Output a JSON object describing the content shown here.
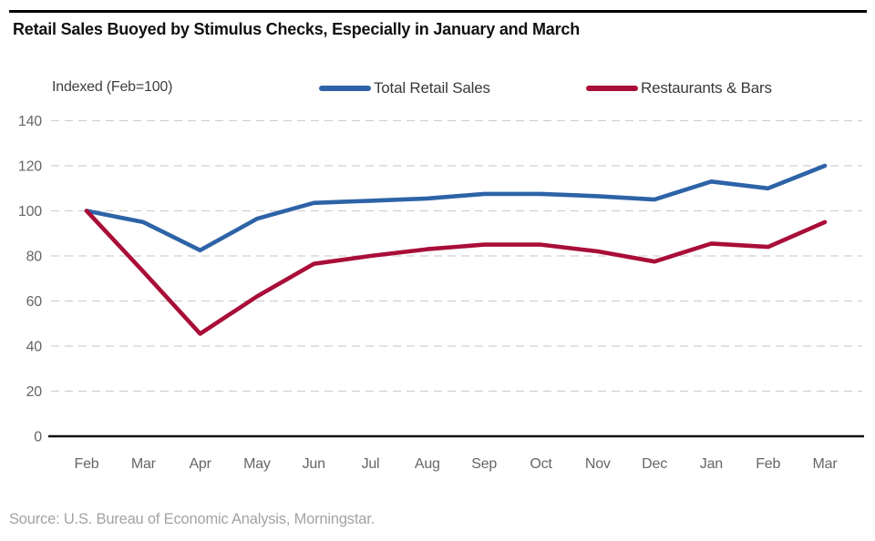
{
  "header": {
    "title": "Retail Sales Buoyed by Stimulus Checks, Especially in January and March"
  },
  "footer": {
    "source": "Source: U.S. Bureau of Economic Analysis, Morningstar."
  },
  "chart_data": {
    "type": "line",
    "title": "Retail Sales Buoyed by Stimulus Checks, Especially in January and March",
    "ylabel": "Indexed (Feb=100)",
    "xlabel": "",
    "categories": [
      "Feb",
      "Mar",
      "Apr",
      "May",
      "Jun",
      "Jul",
      "Aug",
      "Sep",
      "Oct",
      "Nov",
      "Dec",
      "Jan",
      "Feb",
      "Mar"
    ],
    "series": [
      {
        "name": "Total Retail Sales",
        "color": "#2d63a7",
        "values": [
          100,
          95,
          82.5,
          96.5,
          103.5,
          104.5,
          105.5,
          107.5,
          107.5,
          106.5,
          105,
          113,
          110,
          120
        ]
      },
      {
        "name": "Restaurants & Bars",
        "color": "#a90e38",
        "values": [
          100,
          73,
          45.5,
          62,
          76.5,
          80,
          83,
          85,
          85,
          82,
          77.5,
          85.5,
          84,
          95
        ]
      }
    ],
    "yticks": [
      0,
      20,
      40,
      60,
      80,
      100,
      120,
      140
    ],
    "ylim": [
      0,
      140
    ],
    "grid": "horizontal-dashed",
    "legend_position": "top",
    "tick_text_color": "#666666",
    "grid_color": "#d0d0d0",
    "axis_color": "#111111"
  }
}
